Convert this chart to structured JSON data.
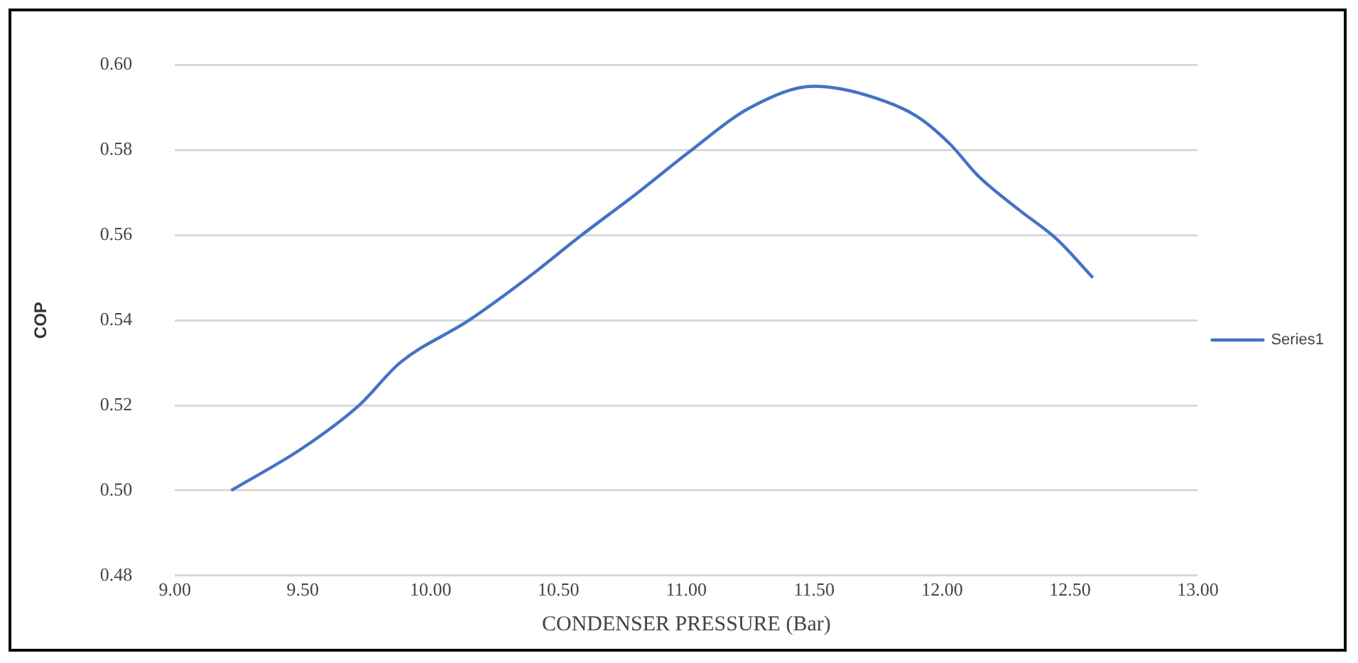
{
  "chart_data": {
    "type": "line",
    "xlabel": "CONDENSER PRESSURE (Bar)",
    "ylabel": "COP",
    "series": [
      {
        "name": "Series1",
        "color": "#4472c4",
        "x": [
          9.22,
          9.5,
          9.72,
          9.88,
          10.15,
          10.38,
          10.59,
          10.81,
          11.02,
          11.25,
          11.5,
          11.7,
          11.9,
          12.03,
          12.14,
          12.3,
          12.45,
          12.59
        ],
        "values": [
          0.5,
          0.51,
          0.52,
          0.53,
          0.54,
          0.55,
          0.56,
          0.57,
          0.58,
          0.59,
          0.595,
          0.593,
          0.588,
          0.5815,
          0.574,
          0.566,
          0.559,
          0.55
        ]
      }
    ],
    "xlim": [
      9,
      13
    ],
    "xticks": [
      {
        "value": 9,
        "label": "9.00"
      },
      {
        "value": 9.5,
        "label": "9.50"
      },
      {
        "value": 10,
        "label": "10.00"
      },
      {
        "value": 10.5,
        "label": "10.50"
      },
      {
        "value": 11,
        "label": "11.00"
      },
      {
        "value": 11.5,
        "label": "11.50"
      },
      {
        "value": 12,
        "label": "12.00"
      },
      {
        "value": 12.5,
        "label": "12.50"
      },
      {
        "value": 13,
        "label": "13.00"
      }
    ],
    "ylim": [
      0.48,
      0.6
    ],
    "yticks": [
      0.48,
      {
        "value": 0.5,
        "label": "0.50"
      },
      0.52,
      0.54,
      0.56,
      0.58,
      {
        "value": 0.6,
        "label": "0.60"
      }
    ],
    "grid": "y",
    "legend": "right",
    "marker": "none",
    "line_style": "solid"
  }
}
